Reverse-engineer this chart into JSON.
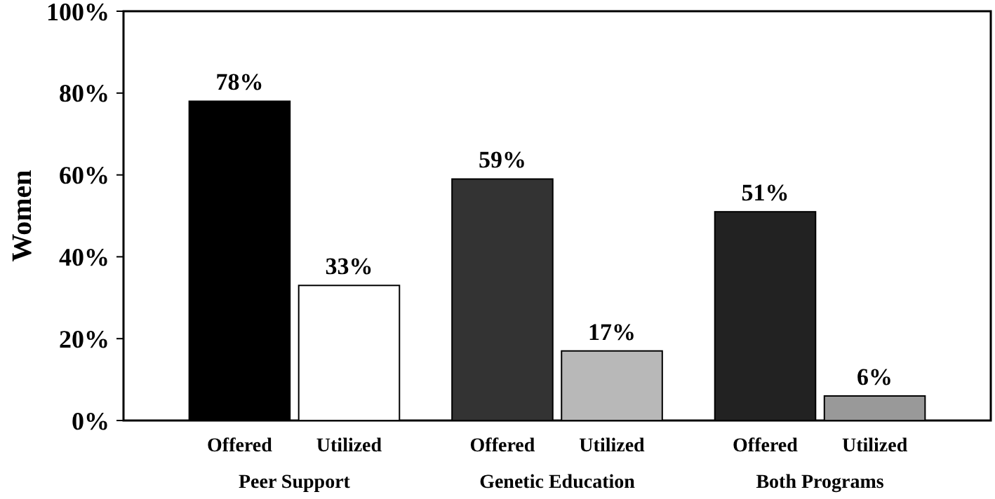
{
  "chart_data": {
    "type": "bar",
    "ylabel": "Women",
    "categories": [
      "Peer Support",
      "Genetic Education",
      "Both Programs"
    ],
    "series": [
      {
        "name": "Offered",
        "colors": [
          "#000000",
          "#333333",
          "#222222"
        ],
        "values": [
          78,
          59,
          51
        ]
      },
      {
        "name": "Utilized",
        "colors": [
          "#ffffff",
          "#b8b8b8",
          "#999999"
        ],
        "values": [
          33,
          17,
          6
        ]
      }
    ],
    "ylim": [
      0,
      100
    ],
    "yticks": [
      {
        "value": 0,
        "label": "0%"
      },
      {
        "value": 20,
        "label": "20%"
      },
      {
        "value": 40,
        "label": "40%"
      },
      {
        "value": 60,
        "label": "60%"
      },
      {
        "value": 80,
        "label": "80%"
      },
      {
        "value": 100,
        "label": "100%"
      }
    ],
    "value_labels": [
      [
        "78%",
        "59%",
        "51%"
      ],
      [
        "33%",
        "17%",
        "6%"
      ]
    ],
    "grid": false,
    "legend": false
  }
}
